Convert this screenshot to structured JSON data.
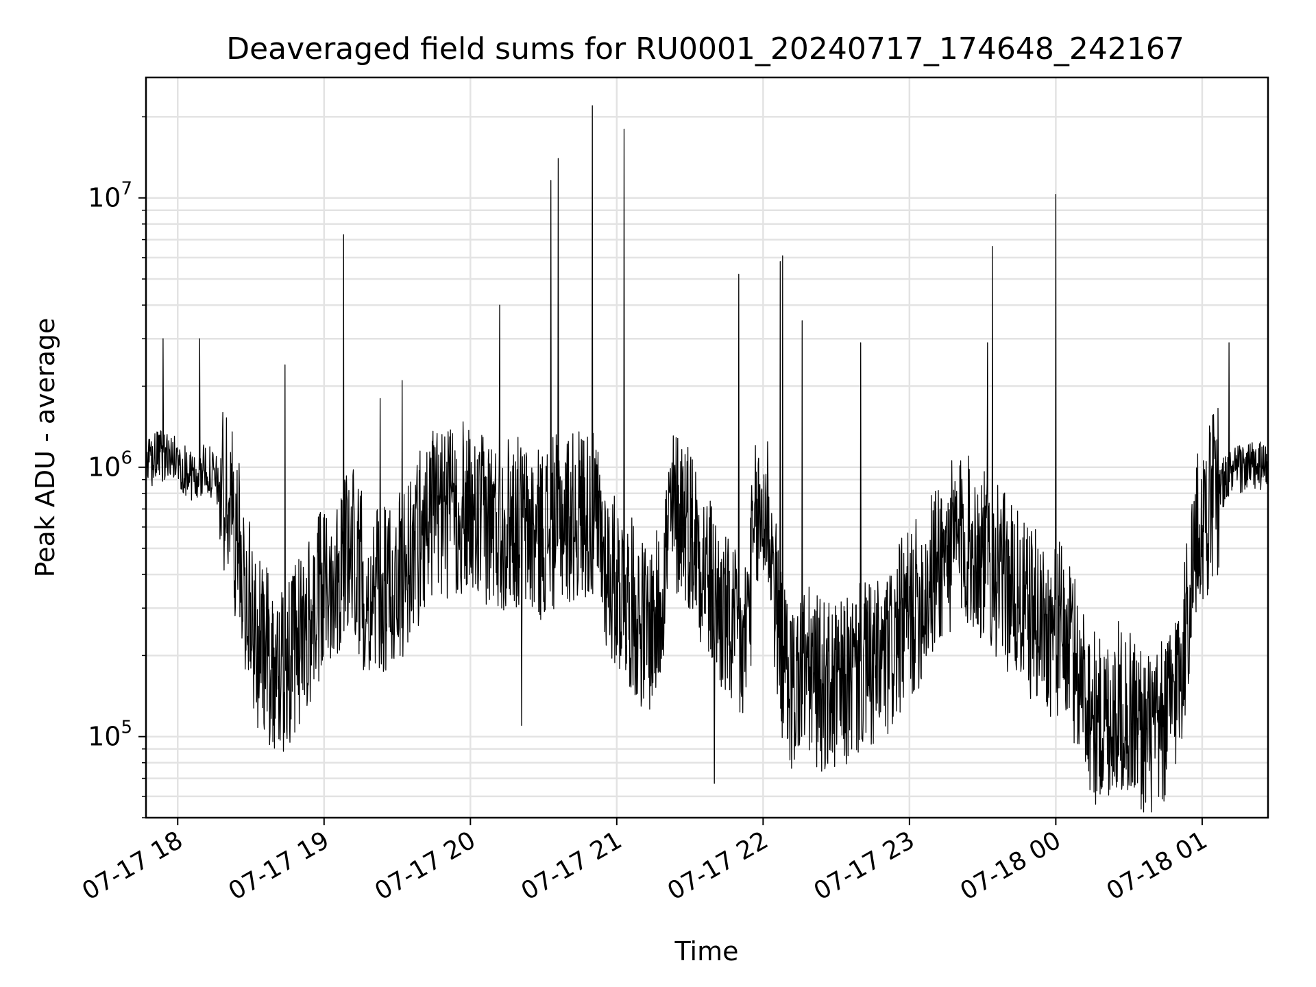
{
  "chart_data": {
    "type": "line",
    "title": "Deaveraged field sums for RU0001_20240717_174648_242167",
    "xlabel": "Time",
    "ylabel": "Peak ADU - average",
    "yscale": "log",
    "xlim": [
      "2024-07-17 17:47",
      "2024-07-18 01:27"
    ],
    "ylim": [
      50000,
      28000000
    ],
    "grid": true,
    "line_color": "#000000",
    "x_ticks": [
      "07-17 18",
      "07-17 19",
      "07-17 20",
      "07-17 21",
      "07-17 22",
      "07-17 23",
      "07-18 00",
      "07-18 01"
    ],
    "y_ticks": [
      {
        "base": "10",
        "exp": "5",
        "value": 100000
      },
      {
        "base": "10",
        "exp": "6",
        "value": 1000000
      },
      {
        "base": "10",
        "exp": "7",
        "value": 10000000
      }
    ],
    "series": [
      {
        "x": [
          "2024-07-17 17:47",
          "2024-07-17 17:52",
          "2024-07-17 17:57",
          "2024-07-17 18:02",
          "2024-07-17 18:07",
          "2024-07-17 18:12",
          "2024-07-17 18:17",
          "2024-07-17 18:22",
          "2024-07-17 18:27",
          "2024-07-17 18:32",
          "2024-07-17 18:37",
          "2024-07-17 18:42",
          "2024-07-17 18:47",
          "2024-07-17 18:52",
          "2024-07-17 18:57",
          "2024-07-17 19:02",
          "2024-07-17 19:07",
          "2024-07-17 19:12",
          "2024-07-17 19:17",
          "2024-07-17 19:22",
          "2024-07-17 19:27",
          "2024-07-17 19:32",
          "2024-07-17 19:37",
          "2024-07-17 19:42",
          "2024-07-17 19:47",
          "2024-07-17 19:52",
          "2024-07-17 19:57",
          "2024-07-17 20:02",
          "2024-07-17 20:07",
          "2024-07-17 20:12",
          "2024-07-17 20:17",
          "2024-07-17 20:22",
          "2024-07-17 20:27",
          "2024-07-17 20:32",
          "2024-07-17 20:37",
          "2024-07-17 20:42",
          "2024-07-17 20:47",
          "2024-07-17 20:52",
          "2024-07-17 20:57",
          "2024-07-17 21:02",
          "2024-07-17 21:07",
          "2024-07-17 21:12",
          "2024-07-17 21:17",
          "2024-07-17 21:22",
          "2024-07-17 21:27",
          "2024-07-17 21:32",
          "2024-07-17 21:37",
          "2024-07-17 21:42",
          "2024-07-17 21:47",
          "2024-07-17 21:52",
          "2024-07-17 21:57",
          "2024-07-17 22:02",
          "2024-07-17 22:07",
          "2024-07-17 22:12",
          "2024-07-17 22:17",
          "2024-07-17 22:22",
          "2024-07-17 22:27",
          "2024-07-17 22:32",
          "2024-07-17 22:37",
          "2024-07-17 22:42",
          "2024-07-17 22:47",
          "2024-07-17 22:52",
          "2024-07-17 22:57",
          "2024-07-17 23:02",
          "2024-07-17 23:07",
          "2024-07-17 23:12",
          "2024-07-17 23:17",
          "2024-07-17 23:22",
          "2024-07-17 23:27",
          "2024-07-17 23:32",
          "2024-07-17 23:37",
          "2024-07-17 23:42",
          "2024-07-17 23:47",
          "2024-07-17 23:52",
          "2024-07-17 23:57",
          "2024-07-18 00:02",
          "2024-07-18 00:07",
          "2024-07-18 00:12",
          "2024-07-18 00:17",
          "2024-07-18 00:22",
          "2024-07-18 00:27",
          "2024-07-18 00:32",
          "2024-07-18 00:37",
          "2024-07-18 00:42",
          "2024-07-18 00:47",
          "2024-07-18 00:52",
          "2024-07-18 00:57",
          "2024-07-18 01:02",
          "2024-07-18 01:07",
          "2024-07-18 01:12",
          "2024-07-18 01:17",
          "2024-07-18 01:22",
          "2024-07-18 01:27"
        ],
        "y": [
          1000000,
          1100000,
          1100000,
          1000000,
          900000,
          1000000,
          850000,
          700000,
          400000,
          230000,
          200000,
          170000,
          200000,
          250000,
          300000,
          380000,
          450000,
          500000,
          350000,
          330000,
          350000,
          400000,
          500000,
          650000,
          700000,
          650000,
          700000,
          600000,
          650000,
          600000,
          650000,
          600000,
          550000,
          600000,
          650000,
          650000,
          700000,
          600000,
          400000,
          350000,
          300000,
          250000,
          280000,
          650000,
          700000,
          550000,
          400000,
          300000,
          250000,
          200000,
          600000,
          700000,
          200000,
          150000,
          180000,
          160000,
          150000,
          150000,
          170000,
          180000,
          180000,
          200000,
          260000,
          300000,
          350000,
          450000,
          500000,
          550000,
          500000,
          450000,
          400000,
          350000,
          300000,
          280000,
          250000,
          250000,
          200000,
          150000,
          110000,
          120000,
          130000,
          120000,
          100000,
          100000,
          130000,
          200000,
          500000,
          700000,
          850000,
          950000,
          1000000,
          1000000,
          1000000
        ]
      }
    ],
    "spikes": [
      {
        "x": "2024-07-17 17:54",
        "y": 3000000
      },
      {
        "x": "2024-07-17 18:09",
        "y": 3000000
      },
      {
        "x": "2024-07-17 18:44",
        "y": 2400000
      },
      {
        "x": "2024-07-17 19:08",
        "y": 7300000
      },
      {
        "x": "2024-07-17 19:23",
        "y": 1800000
      },
      {
        "x": "2024-07-17 19:32",
        "y": 2100000
      },
      {
        "x": "2024-07-17 20:12",
        "y": 4000000
      },
      {
        "x": "2024-07-17 20:21",
        "y": 110000
      },
      {
        "x": "2024-07-17 20:33",
        "y": 11600000
      },
      {
        "x": "2024-07-17 20:36",
        "y": 14000000
      },
      {
        "x": "2024-07-17 20:50",
        "y": 22000000
      },
      {
        "x": "2024-07-17 21:03",
        "y": 18000000
      },
      {
        "x": "2024-07-17 21:40",
        "y": 67000
      },
      {
        "x": "2024-07-17 21:50",
        "y": 5200000
      },
      {
        "x": "2024-07-17 22:07",
        "y": 5800000
      },
      {
        "x": "2024-07-17 22:08",
        "y": 6100000
      },
      {
        "x": "2024-07-17 22:16",
        "y": 3500000
      },
      {
        "x": "2024-07-17 22:40",
        "y": 2900000
      },
      {
        "x": "2024-07-17 23:32",
        "y": 2900000
      },
      {
        "x": "2024-07-17 23:34",
        "y": 6600000
      },
      {
        "x": "2024-07-18 00:00",
        "y": 10300000
      },
      {
        "x": "2024-07-18 00:30",
        "y": 66000
      },
      {
        "x": "2024-07-18 01:11",
        "y": 2900000
      }
    ]
  }
}
